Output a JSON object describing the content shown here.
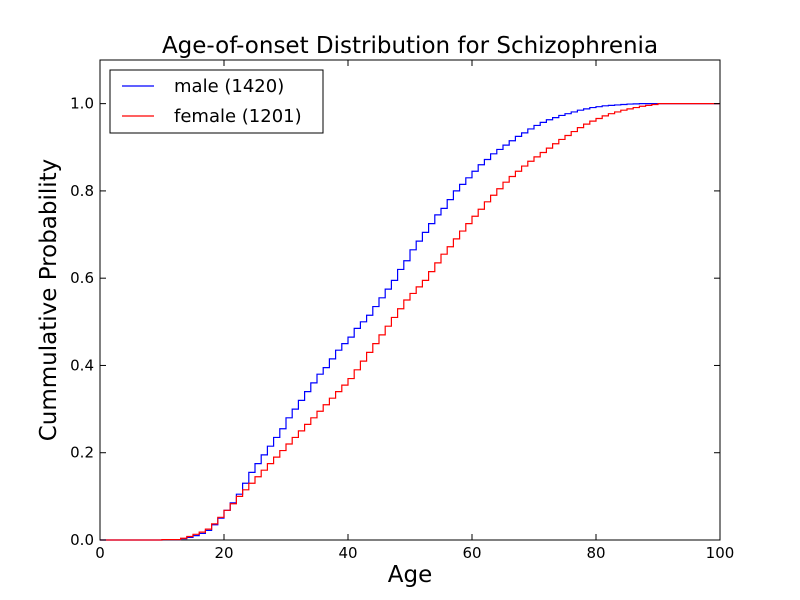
{
  "chart_data": {
    "type": "line",
    "step": true,
    "title": "Age-of-onset Distribution for Schizophrenia",
    "xlabel": "Age",
    "ylabel": "Cummulative Probability",
    "xlim": [
      0,
      100
    ],
    "ylim": [
      0,
      1.1
    ],
    "xticks": [
      0,
      20,
      40,
      60,
      80,
      100
    ],
    "xtick_labels": [
      "0",
      "20",
      "40",
      "60",
      "80",
      "100"
    ],
    "yticks": [
      0.0,
      0.2,
      0.4,
      0.6,
      0.8,
      1.0
    ],
    "ytick_labels": [
      "0.0",
      "0.2",
      "0.4",
      "0.6",
      "0.8",
      "1.0"
    ],
    "grid": false,
    "legend_position": "top-left",
    "series": [
      {
        "name": "male (1420)",
        "color": "#0000ff",
        "x": [
          0,
          10,
          13,
          14,
          15,
          16,
          17,
          18,
          19,
          20,
          21,
          22,
          23,
          24,
          25,
          26,
          27,
          28,
          29,
          30,
          31,
          32,
          33,
          34,
          35,
          36,
          37,
          38,
          39,
          40,
          41,
          42,
          43,
          44,
          45,
          46,
          47,
          48,
          49,
          50,
          51,
          52,
          53,
          54,
          55,
          56,
          57,
          58,
          59,
          60,
          61,
          62,
          63,
          64,
          65,
          66,
          67,
          68,
          69,
          70,
          71,
          72,
          73,
          74,
          75,
          76,
          77,
          78,
          79,
          80,
          81,
          82,
          83,
          84,
          85,
          86,
          87,
          88,
          89,
          90,
          100
        ],
        "y": [
          0.0,
          0.001,
          0.003,
          0.006,
          0.01,
          0.015,
          0.022,
          0.035,
          0.05,
          0.068,
          0.085,
          0.105,
          0.13,
          0.155,
          0.175,
          0.195,
          0.215,
          0.235,
          0.255,
          0.28,
          0.3,
          0.32,
          0.34,
          0.36,
          0.38,
          0.395,
          0.415,
          0.435,
          0.45,
          0.465,
          0.485,
          0.5,
          0.515,
          0.535,
          0.555,
          0.575,
          0.595,
          0.62,
          0.64,
          0.665,
          0.685,
          0.705,
          0.725,
          0.745,
          0.76,
          0.78,
          0.8,
          0.815,
          0.83,
          0.845,
          0.86,
          0.872,
          0.885,
          0.895,
          0.905,
          0.915,
          0.925,
          0.933,
          0.942,
          0.95,
          0.957,
          0.963,
          0.968,
          0.973,
          0.977,
          0.981,
          0.985,
          0.988,
          0.991,
          0.993,
          0.995,
          0.996,
          0.997,
          0.998,
          0.999,
          0.9995,
          1.0,
          1.0,
          1.0,
          1.0,
          1.0
        ]
      },
      {
        "name": "female (1201)",
        "color": "#ff0000",
        "x": [
          0,
          10,
          13,
          14,
          15,
          16,
          17,
          18,
          19,
          20,
          21,
          22,
          23,
          24,
          25,
          26,
          27,
          28,
          29,
          30,
          31,
          32,
          33,
          34,
          35,
          36,
          37,
          38,
          39,
          40,
          41,
          42,
          43,
          44,
          45,
          46,
          47,
          48,
          49,
          50,
          51,
          52,
          53,
          54,
          55,
          56,
          57,
          58,
          59,
          60,
          61,
          62,
          63,
          64,
          65,
          66,
          67,
          68,
          69,
          70,
          71,
          72,
          73,
          74,
          75,
          76,
          77,
          78,
          79,
          80,
          81,
          82,
          83,
          84,
          85,
          86,
          87,
          88,
          89,
          90,
          100
        ],
        "y": [
          0.0,
          0.001,
          0.004,
          0.008,
          0.013,
          0.018,
          0.025,
          0.037,
          0.052,
          0.068,
          0.083,
          0.1,
          0.115,
          0.13,
          0.145,
          0.16,
          0.175,
          0.19,
          0.205,
          0.22,
          0.235,
          0.25,
          0.265,
          0.28,
          0.295,
          0.31,
          0.325,
          0.34,
          0.355,
          0.37,
          0.39,
          0.41,
          0.43,
          0.45,
          0.47,
          0.49,
          0.51,
          0.53,
          0.55,
          0.565,
          0.58,
          0.595,
          0.615,
          0.635,
          0.655,
          0.672,
          0.69,
          0.708,
          0.725,
          0.742,
          0.758,
          0.775,
          0.79,
          0.805,
          0.82,
          0.833,
          0.845,
          0.857,
          0.868,
          0.878,
          0.888,
          0.898,
          0.908,
          0.918,
          0.927,
          0.936,
          0.945,
          0.953,
          0.96,
          0.966,
          0.972,
          0.977,
          0.981,
          0.985,
          0.988,
          0.991,
          0.994,
          0.996,
          0.998,
          1.0,
          1.0
        ]
      }
    ]
  }
}
